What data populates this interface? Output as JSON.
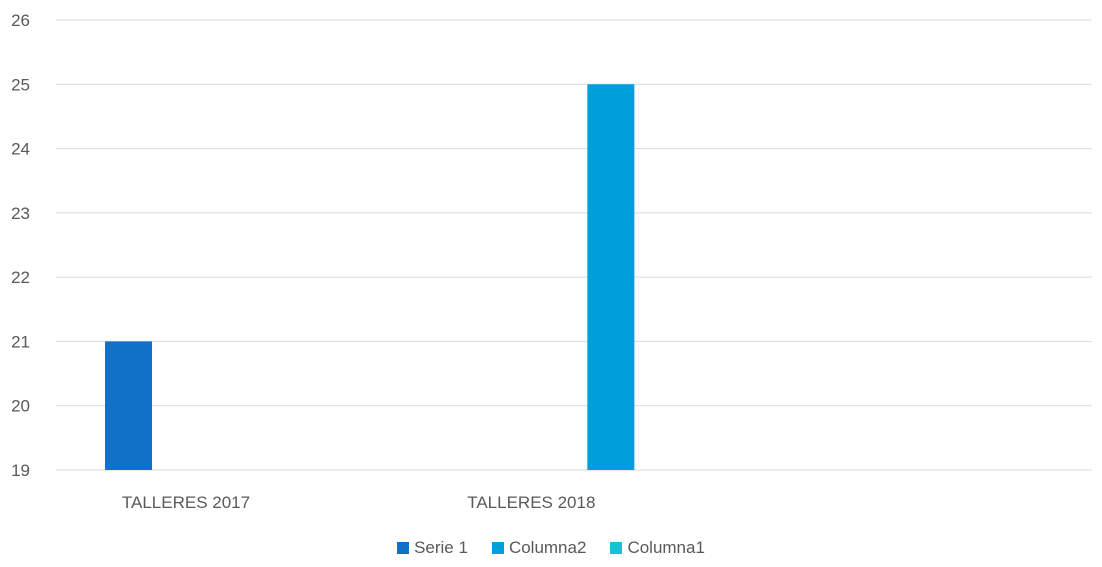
{
  "chart_data": {
    "type": "bar",
    "categories": [
      "TALLERES 2017",
      "TALLERES 2018"
    ],
    "series": [
      {
        "name": "Serie 1",
        "color": "#1170c8",
        "values": [
          21,
          null
        ]
      },
      {
        "name": "Columna2",
        "color": "#009fdb",
        "values": [
          null,
          25
        ]
      },
      {
        "name": "Columna1",
        "color": "#13c2d6",
        "values": [
          null,
          null
        ]
      }
    ],
    "ylim": [
      19,
      26
    ],
    "yticks": [
      19,
      20,
      21,
      22,
      23,
      24,
      25,
      26
    ],
    "grid": true,
    "legend": "bottom",
    "gridline_color": "#d9d9d9",
    "tick_color": "#595959"
  }
}
